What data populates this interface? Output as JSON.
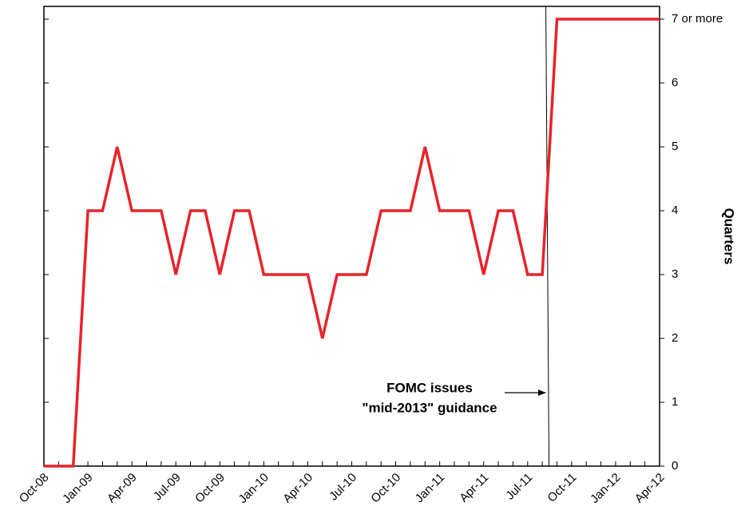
{
  "chart_data": {
    "type": "line",
    "y_axis_label": "Quarters",
    "categories": [
      "Oct-08",
      null,
      null,
      "Jan-09",
      null,
      null,
      "Apr-09",
      null,
      null,
      "Jul-09",
      null,
      null,
      "Oct-09",
      null,
      null,
      "Jan-10",
      null,
      null,
      "Apr-10",
      null,
      null,
      "Jul-10",
      null,
      null,
      "Oct-10",
      null,
      null,
      "Jan-11",
      null,
      null,
      "Apr-11",
      null,
      null,
      "Jul-11",
      null,
      null,
      "Oct-11",
      null,
      null,
      "Jan-12",
      null,
      null,
      "Apr-12"
    ],
    "series": [
      {
        "color": "#e8232a",
        "values": [
          0,
          0,
          0,
          4,
          4,
          5,
          4,
          4,
          4,
          3,
          4,
          4,
          3,
          4,
          4,
          3,
          3,
          3,
          3,
          2,
          3,
          3,
          3,
          4,
          4,
          4,
          5,
          4,
          4,
          4,
          3,
          4,
          4,
          3,
          3,
          7,
          7,
          7,
          7,
          7,
          7,
          7,
          7
        ]
      }
    ],
    "ylim": [
      0,
      7.2
    ],
    "yticks": [
      0,
      1,
      2,
      3,
      4,
      5,
      6,
      {
        "value": 7,
        "label": "7 or more"
      }
    ],
    "annotation": {
      "lines": [
        "FOMC issues",
        "\"mid-2013\" guidance"
      ],
      "x": 34.35
    }
  }
}
